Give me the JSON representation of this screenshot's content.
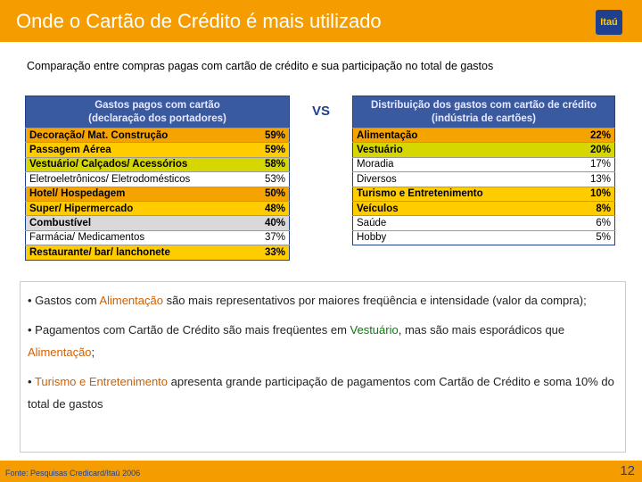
{
  "header": {
    "title": "Onde o Cartão de Crédito é mais utilizado",
    "logo": "Itaú"
  },
  "subtitle": "Comparação entre compras pagas com cartão de crédito e sua participação no total de gastos",
  "left_table": {
    "header": [
      "Gastos pagos com cartão",
      "(declaração dos portadores)"
    ],
    "rows": [
      [
        "Decoração/ Mat. Construção",
        "59%"
      ],
      [
        "Passagem Aérea",
        "59%"
      ],
      [
        "Vestuário/ Calçados/ Acessórios",
        "58%"
      ],
      [
        "Eletroeletrônicos/ Eletrodomésticos",
        "53%"
      ],
      [
        "Hotel/ Hospedagem",
        "50%"
      ],
      [
        "Super/ Hipermercado",
        "48%"
      ],
      [
        "Combustível",
        "40%"
      ],
      [
        "Farmácia/ Medicamentos",
        "37%"
      ],
      [
        "Restaurante/ bar/ lanchonete",
        "33%"
      ]
    ]
  },
  "vs": "VS",
  "right_table": {
    "header": [
      "Distribuição dos gastos com cartão de crédito",
      "(indústria de cartões)"
    ],
    "rows": [
      [
        "Alimentação",
        "22%"
      ],
      [
        "Vestuário",
        "20%"
      ],
      [
        "Moradia",
        "17%"
      ],
      [
        "Diversos",
        "13%"
      ],
      [
        "Turismo e Entretenimento",
        "10%"
      ],
      [
        "Veículos",
        "8%"
      ],
      [
        "Saúde",
        "6%"
      ],
      [
        "Hobby",
        "5%"
      ]
    ]
  },
  "bullets": [
    [
      "• Gastos com ",
      "Alimentação",
      " são mais representativos por maiores freqüência e intensidade (valor da compra);"
    ],
    [
      "• Pagamentos com Cartão de Crédito são mais freqüentes em ",
      "Vestuário",
      ", mas são mais esporádicos que ",
      "Alimentação",
      ";"
    ],
    [
      "• ",
      "Turismo e Entretenimento",
      " apresenta grande participação de pagamentos com Cartão de Crédito e soma 10% do total de gastos"
    ]
  ],
  "footer": {
    "source": "Fonte: Pesquisas Credicard/Itaú 2006",
    "page": "12"
  }
}
